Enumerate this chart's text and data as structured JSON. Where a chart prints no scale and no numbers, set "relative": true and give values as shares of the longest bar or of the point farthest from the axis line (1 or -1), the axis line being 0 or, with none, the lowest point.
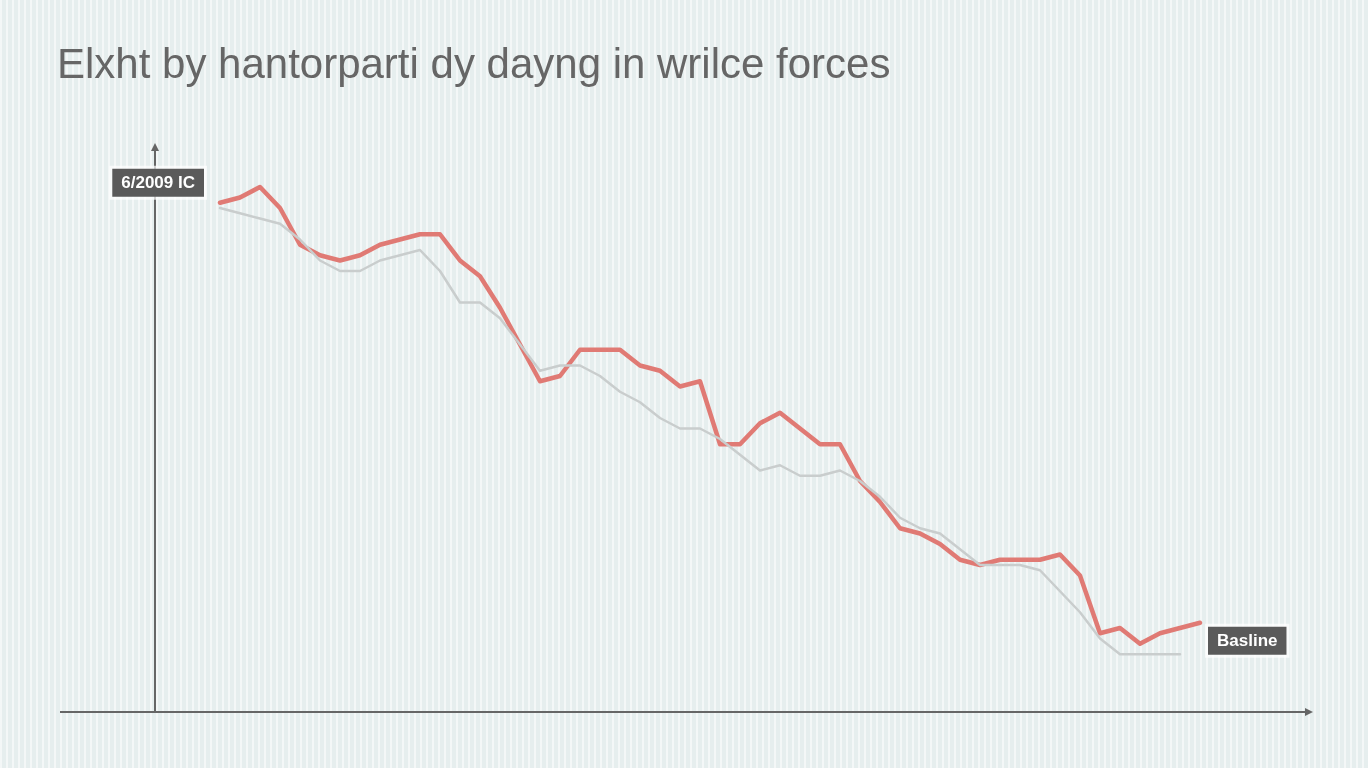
{
  "chart_data": {
    "type": "line",
    "title": "Elxht by hantorparti dy dayng in wrilce forces",
    "relative": true,
    "legend": false,
    "marker": "none",
    "line_style": "solid",
    "categories": [
      null,
      null,
      null,
      null,
      null,
      null,
      null,
      null,
      null,
      null,
      null,
      null,
      null,
      null,
      null,
      null,
      null,
      null,
      null,
      null,
      null,
      null,
      null,
      null,
      null,
      null,
      null,
      null,
      null,
      null,
      null,
      null,
      null,
      null,
      null,
      null,
      null,
      null,
      null,
      null,
      null,
      null,
      null,
      null,
      null,
      null,
      null,
      null,
      null,
      null
    ],
    "annotations": [
      "6/2009 IC",
      "Basline"
    ],
    "series": [
      {
        "color": "#c9cdcd",
        "values": [
          0.96,
          0.95,
          0.94,
          0.93,
          0.9,
          0.86,
          0.84,
          0.84,
          0.86,
          0.87,
          0.88,
          0.84,
          0.78,
          0.78,
          0.75,
          0.7,
          0.65,
          0.66,
          0.66,
          0.64,
          0.61,
          0.59,
          0.56,
          0.54,
          0.54,
          0.52,
          0.49,
          0.46,
          0.47,
          0.45,
          0.45,
          0.46,
          0.44,
          0.41,
          0.37,
          0.35,
          0.34,
          0.31,
          0.28,
          0.28,
          0.28,
          0.27,
          0.23,
          0.19,
          0.14,
          0.11,
          0.11,
          0.11,
          0.11,
          null
        ]
      },
      {
        "color": "#e07a74",
        "values": [
          0.97,
          0.98,
          1,
          0.96,
          0.89,
          0.87,
          0.86,
          0.87,
          0.89,
          0.9,
          0.91,
          0.91,
          0.86,
          0.83,
          0.77,
          0.7,
          0.63,
          0.64,
          0.69,
          0.69,
          0.69,
          0.66,
          0.65,
          0.62,
          0.63,
          0.51,
          0.51,
          0.55,
          0.57,
          0.54,
          0.51,
          0.51,
          0.44,
          0.4,
          0.35,
          0.34,
          0.32,
          0.29,
          0.28,
          0.29,
          0.29,
          0.29,
          0.3,
          0.26,
          0.15,
          0.16,
          0.13,
          0.15,
          0.16,
          0.17
        ]
      }
    ]
  }
}
